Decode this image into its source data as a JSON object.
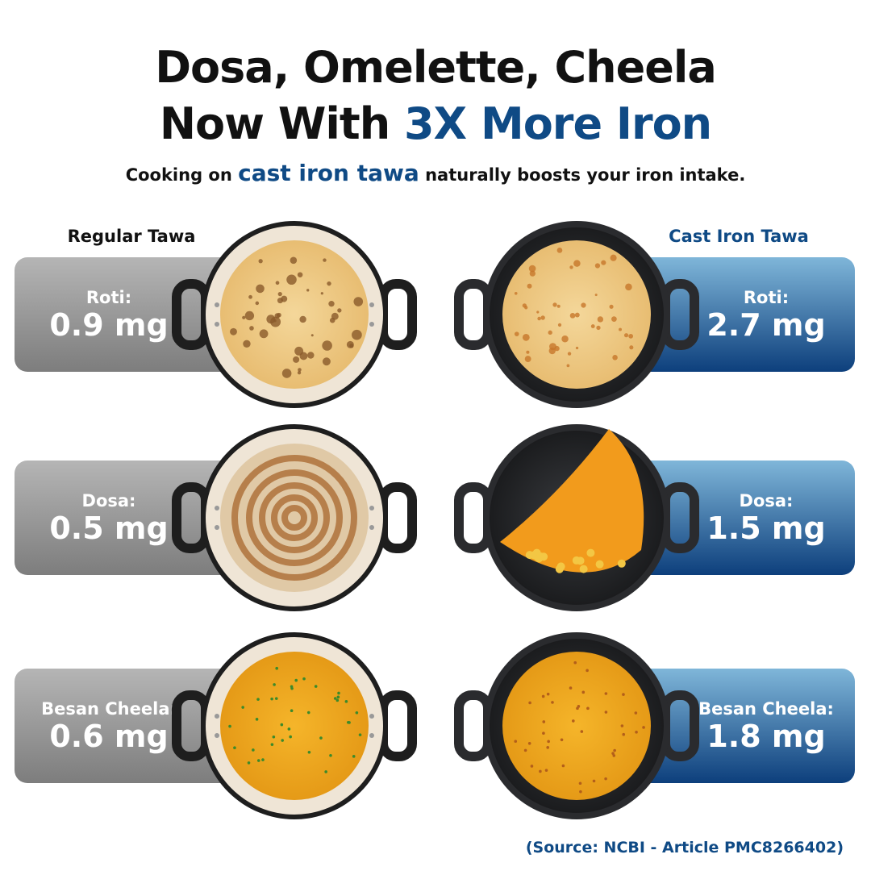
{
  "header": {
    "title_line1": "Dosa, Omelette, Cheela",
    "title_line2_prefix": "Now With",
    "title_line2_highlight": "3X More Iron",
    "subtitle_prefix": "Cooking on",
    "subtitle_highlight": "cast iron tawa",
    "subtitle_suffix": "naturally boosts your iron intake."
  },
  "columns": [
    {
      "label": "Regular Tawa",
      "items": [
        {
          "food": "Roti:",
          "amount": "0.9 mg"
        },
        {
          "food": "Dosa:",
          "amount": "0.5 mg"
        },
        {
          "food": "Besan Cheela:",
          "amount": "0.6 mg"
        }
      ]
    },
    {
      "label": "Cast Iron Tawa",
      "items": [
        {
          "food": "Roti:",
          "amount": "2.7 mg"
        },
        {
          "food": "Dosa:",
          "amount": "1.5 mg"
        },
        {
          "food": "Besan Cheela:",
          "amount": "1.8 mg"
        }
      ]
    }
  ],
  "source": "(Source: NCBI - Article PMC8266402)"
}
